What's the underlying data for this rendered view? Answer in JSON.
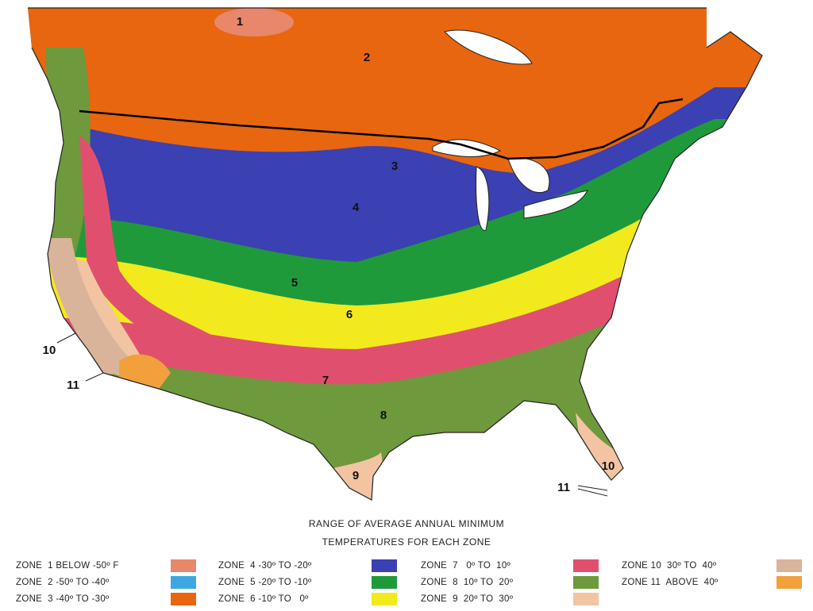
{
  "map": {
    "labels": [
      "1",
      "2",
      "3",
      "4",
      "5",
      "6",
      "7",
      "8",
      "9",
      "10",
      "10",
      "11",
      "11"
    ]
  },
  "legend": {
    "title": [
      "RANGE OF AVERAGE ANNUAL MINIMUM",
      "TEMPERATURES FOR EACH ZONE"
    ],
    "zones": [
      {
        "label": "ZONE  1 BELOW -50º F",
        "color": "#e8876a"
      },
      {
        "label": "ZONE  2 -50º TO -40º",
        "color": "#3fa6e4"
      },
      {
        "label": "ZONE  3 -40º TO -30º",
        "color": "#e8660f"
      },
      {
        "label": "ZONE  4 -30º TO -20º",
        "color": "#3b40b2"
      },
      {
        "label": "ZONE  5 -20º TO -10º",
        "color": "#1f9a3a"
      },
      {
        "label": "ZONE  6 -10º TO   0º",
        "color": "#f2ea1c"
      },
      {
        "label": "ZONE  7   0º TO  10º",
        "color": "#e0506e"
      },
      {
        "label": "ZONE  8  10º TO  20º",
        "color": "#6e993c"
      },
      {
        "label": "ZONE  9  20º TO  30º",
        "color": "#f2c4a2"
      },
      {
        "label": "ZONE 10  30º TO  40º",
        "color": "#d9b49a"
      },
      {
        "label": "ZONE 11  ABOVE  40º",
        "color": "#f2a03c"
      }
    ]
  }
}
